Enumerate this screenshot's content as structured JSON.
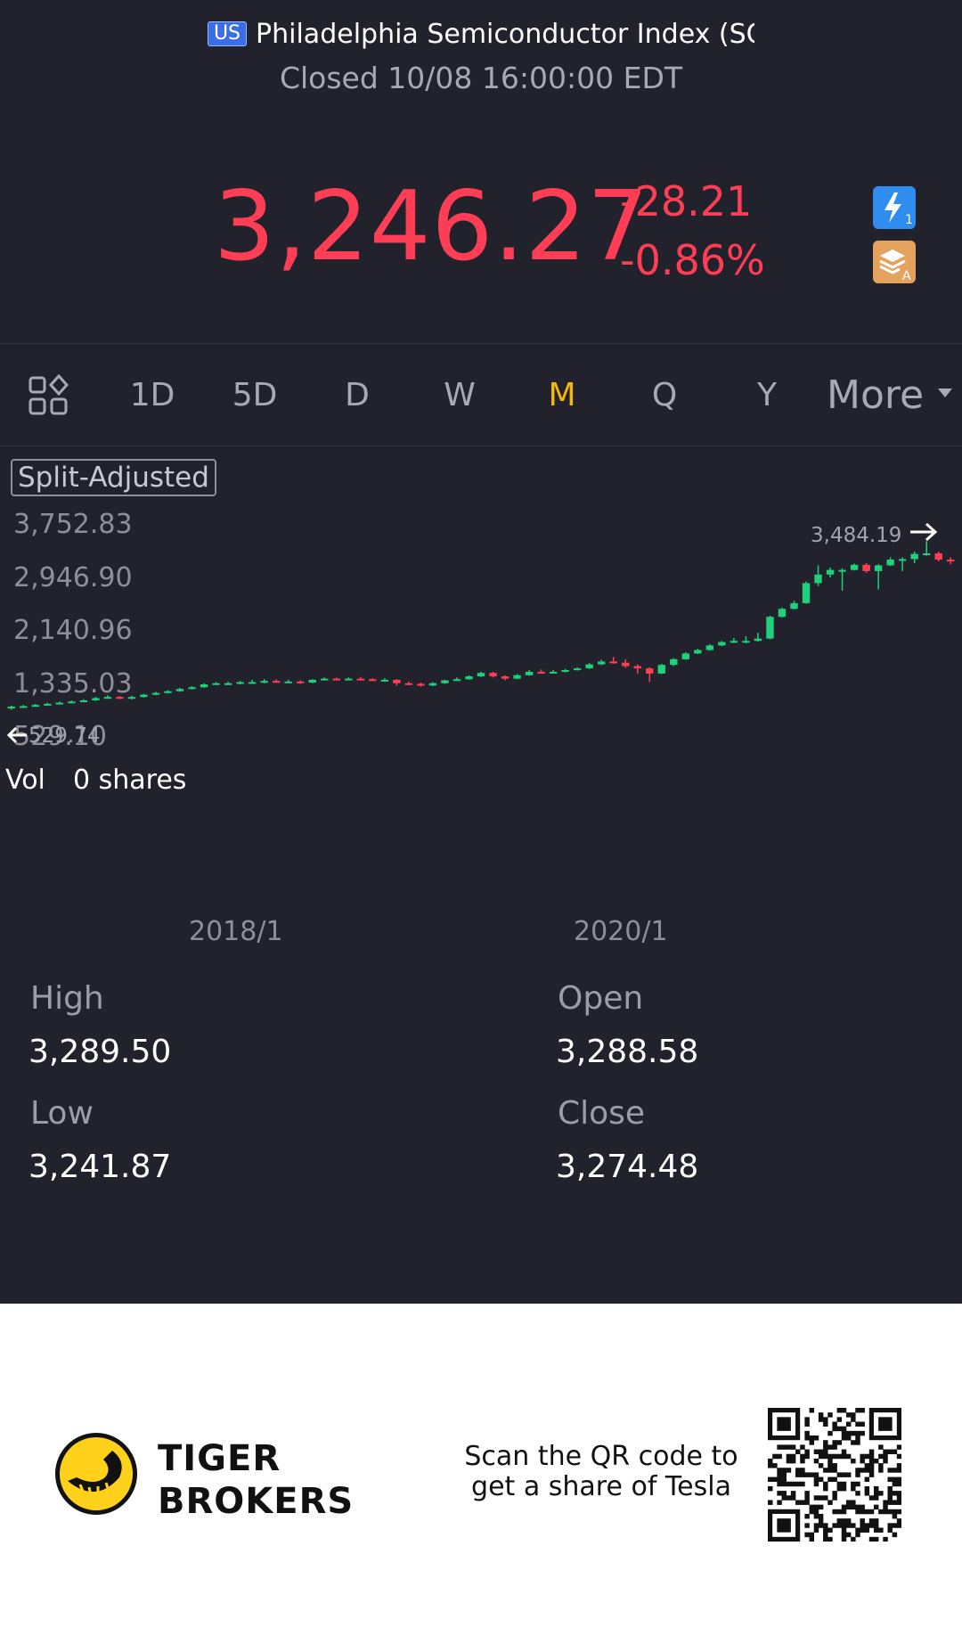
{
  "header": {
    "market_badge": "US",
    "title": "Philadelphia Semiconductor Index (SO",
    "status": "Closed 10/08 16:00:00 EDT"
  },
  "quote": {
    "price": "3,246.27",
    "change": "-28.21",
    "change_pct": "-0.86%",
    "color_down": "#ff3e55",
    "color_up": "#1fd17a"
  },
  "quick_icons": [
    "lightning-icon",
    "layers-icon"
  ],
  "periods": {
    "items": [
      "1D",
      "5D",
      "D",
      "W",
      "M",
      "Q",
      "Y"
    ],
    "active": "M",
    "more_label": "More"
  },
  "chart": {
    "split_label": "Split-Adjusted",
    "y_labels": [
      "3,752.83",
      "2,946.90",
      "2,140.96",
      "1,335.03",
      "529.10"
    ],
    "min_label": "529.74",
    "max_label": "3,484.19",
    "x_labels": [
      "2018/1",
      "2020/1"
    ],
    "volume_label": "Vol",
    "volume_value": "0 shares"
  },
  "chart_data": {
    "type": "candlestick",
    "ylim": [
      529.1,
      3752.83
    ],
    "y_ticks": [
      3752.83,
      2946.9,
      2140.96,
      1335.03,
      529.1
    ],
    "x_ticks": [
      "2018/1",
      "2020/1"
    ],
    "series": [
      {
        "o": 560,
        "c": 590,
        "h": 610,
        "l": 540
      },
      {
        "o": 590,
        "c": 600,
        "h": 620,
        "l": 580
      },
      {
        "o": 600,
        "c": 620,
        "h": 640,
        "l": 590
      },
      {
        "o": 620,
        "c": 640,
        "h": 660,
        "l": 610
      },
      {
        "o": 640,
        "c": 660,
        "h": 680,
        "l": 630
      },
      {
        "o": 660,
        "c": 680,
        "h": 700,
        "l": 650
      },
      {
        "o": 680,
        "c": 700,
        "h": 720,
        "l": 670
      },
      {
        "o": 700,
        "c": 740,
        "h": 760,
        "l": 690
      },
      {
        "o": 740,
        "c": 760,
        "h": 790,
        "l": 730
      },
      {
        "o": 760,
        "c": 730,
        "h": 780,
        "l": 720
      },
      {
        "o": 730,
        "c": 760,
        "h": 780,
        "l": 715
      },
      {
        "o": 760,
        "c": 800,
        "h": 815,
        "l": 750
      },
      {
        "o": 800,
        "c": 830,
        "h": 850,
        "l": 790
      },
      {
        "o": 830,
        "c": 860,
        "h": 880,
        "l": 820
      },
      {
        "o": 860,
        "c": 900,
        "h": 920,
        "l": 850
      },
      {
        "o": 900,
        "c": 930,
        "h": 950,
        "l": 890
      },
      {
        "o": 930,
        "c": 980,
        "h": 1000,
        "l": 920
      },
      {
        "o": 980,
        "c": 1000,
        "h": 1020,
        "l": 970
      },
      {
        "o": 1000,
        "c": 1000,
        "h": 1030,
        "l": 980
      },
      {
        "o": 1000,
        "c": 1020,
        "h": 1040,
        "l": 980
      },
      {
        "o": 1020,
        "c": 1020,
        "h": 1060,
        "l": 990
      },
      {
        "o": 1020,
        "c": 1040,
        "h": 1070,
        "l": 1000
      },
      {
        "o": 1040,
        "c": 1030,
        "h": 1070,
        "l": 1010
      },
      {
        "o": 1030,
        "c": 1030,
        "h": 1060,
        "l": 1010
      },
      {
        "o": 1030,
        "c": 1010,
        "h": 1050,
        "l": 990
      },
      {
        "o": 1010,
        "c": 1060,
        "h": 1070,
        "l": 1000
      },
      {
        "o": 1060,
        "c": 1080,
        "h": 1100,
        "l": 1050
      },
      {
        "o": 1080,
        "c": 1070,
        "h": 1100,
        "l": 1050
      },
      {
        "o": 1070,
        "c": 1080,
        "h": 1100,
        "l": 1060
      },
      {
        "o": 1080,
        "c": 1070,
        "h": 1110,
        "l": 1050
      },
      {
        "o": 1070,
        "c": 1060,
        "h": 1090,
        "l": 1040
      },
      {
        "o": 1060,
        "c": 1060,
        "h": 1090,
        "l": 1040
      },
      {
        "o": 1060,
        "c": 1000,
        "h": 1070,
        "l": 960
      },
      {
        "o": 1000,
        "c": 990,
        "h": 1030,
        "l": 970
      },
      {
        "o": 990,
        "c": 960,
        "h": 1010,
        "l": 940
      },
      {
        "o": 960,
        "c": 1000,
        "h": 1020,
        "l": 950
      },
      {
        "o": 1000,
        "c": 1050,
        "h": 1060,
        "l": 990
      },
      {
        "o": 1050,
        "c": 1070,
        "h": 1100,
        "l": 1040
      },
      {
        "o": 1070,
        "c": 1120,
        "h": 1140,
        "l": 1060
      },
      {
        "o": 1120,
        "c": 1180,
        "h": 1200,
        "l": 1110
      },
      {
        "o": 1180,
        "c": 1120,
        "h": 1200,
        "l": 1100
      },
      {
        "o": 1120,
        "c": 1080,
        "h": 1140,
        "l": 1050
      },
      {
        "o": 1080,
        "c": 1140,
        "h": 1160,
        "l": 1070
      },
      {
        "o": 1140,
        "c": 1200,
        "h": 1230,
        "l": 1130
      },
      {
        "o": 1200,
        "c": 1190,
        "h": 1240,
        "l": 1180
      },
      {
        "o": 1190,
        "c": 1200,
        "h": 1230,
        "l": 1170
      },
      {
        "o": 1200,
        "c": 1230,
        "h": 1250,
        "l": 1190
      },
      {
        "o": 1230,
        "c": 1260,
        "h": 1280,
        "l": 1220
      },
      {
        "o": 1260,
        "c": 1330,
        "h": 1350,
        "l": 1250
      },
      {
        "o": 1330,
        "c": 1380,
        "h": 1410,
        "l": 1320
      },
      {
        "o": 1380,
        "c": 1360,
        "h": 1460,
        "l": 1340
      },
      {
        "o": 1360,
        "c": 1300,
        "h": 1420,
        "l": 1270
      },
      {
        "o": 1300,
        "c": 1260,
        "h": 1330,
        "l": 1170
      },
      {
        "o": 1260,
        "c": 1170,
        "h": 1280,
        "l": 1020
      },
      {
        "o": 1170,
        "c": 1320,
        "h": 1340,
        "l": 1160
      },
      {
        "o": 1320,
        "c": 1420,
        "h": 1440,
        "l": 1300
      },
      {
        "o": 1420,
        "c": 1520,
        "h": 1540,
        "l": 1410
      },
      {
        "o": 1520,
        "c": 1580,
        "h": 1600,
        "l": 1510
      },
      {
        "o": 1580,
        "c": 1660,
        "h": 1680,
        "l": 1570
      },
      {
        "o": 1660,
        "c": 1720,
        "h": 1740,
        "l": 1650
      },
      {
        "o": 1720,
        "c": 1740,
        "h": 1790,
        "l": 1700
      },
      {
        "o": 1740,
        "c": 1740,
        "h": 1820,
        "l": 1700
      },
      {
        "o": 1740,
        "c": 1780,
        "h": 1880,
        "l": 1730
      },
      {
        "o": 1780,
        "c": 2160,
        "h": 2180,
        "l": 1770
      },
      {
        "o": 2160,
        "c": 2300,
        "h": 2320,
        "l": 2150
      },
      {
        "o": 2300,
        "c": 2400,
        "h": 2440,
        "l": 2290
      },
      {
        "o": 2400,
        "c": 2750,
        "h": 2780,
        "l": 2390
      },
      {
        "o": 2750,
        "c": 2900,
        "h": 3060,
        "l": 2700
      },
      {
        "o": 2900,
        "c": 2980,
        "h": 3020,
        "l": 2850
      },
      {
        "o": 2980,
        "c": 2980,
        "h": 3010,
        "l": 2620
      },
      {
        "o": 2980,
        "c": 3070,
        "h": 3090,
        "l": 2970
      },
      {
        "o": 3070,
        "c": 2960,
        "h": 3100,
        "l": 2930
      },
      {
        "o": 2960,
        "c": 3060,
        "h": 3080,
        "l": 2640
      },
      {
        "o": 3060,
        "c": 3160,
        "h": 3200,
        "l": 3050
      },
      {
        "o": 3160,
        "c": 3170,
        "h": 3200,
        "l": 2960
      },
      {
        "o": 3170,
        "c": 3260,
        "h": 3300,
        "l": 3100
      },
      {
        "o": 3260,
        "c": 3270,
        "h": 3484,
        "l": 3230
      },
      {
        "o": 3270,
        "c": 3160,
        "h": 3300,
        "l": 3130
      },
      {
        "o": 3160,
        "c": 3150,
        "h": 3200,
        "l": 3080
      }
    ]
  },
  "stats": {
    "high_label": "High",
    "high": "3,289.50",
    "open_label": "Open",
    "open": "3,288.58",
    "low_label": "Low",
    "low": "3,241.87",
    "close_label": "Close",
    "close": "3,274.48"
  },
  "footer": {
    "brand_line1": "TIGER",
    "brand_line2": "BROKERS",
    "promo_line1": "Scan the QR code to",
    "promo_line2": "get a share of Tesla"
  }
}
